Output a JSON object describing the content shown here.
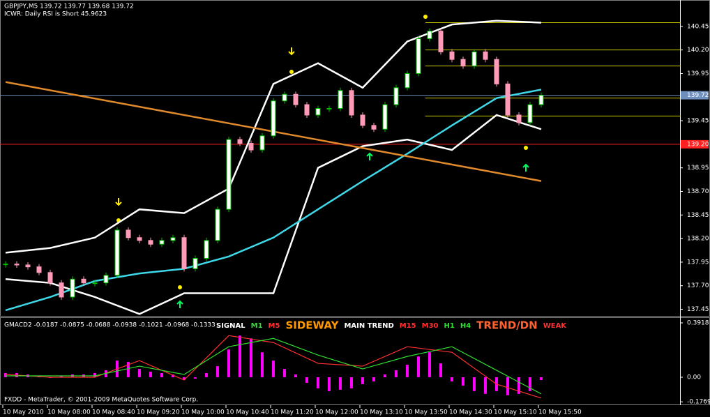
{
  "chart_data": [
    {
      "type": "candlestick",
      "title": "GBPJPY,M5  139.72 139.77 139.68 139.72",
      "subtitle": "ICWR: Daily RSI is Short 45.9623",
      "ylim": [
        137.38,
        140.73
      ],
      "yticks": [
        140.45,
        {
          "value": 140.2,
          "label": "140.20"
        },
        139.95,
        {
          "value": 139.7,
          "label": "139.70"
        },
        139.45,
        {
          "value": 139.2,
          "label": "139.20"
        },
        138.95,
        {
          "value": 138.7,
          "label": "138.70"
        },
        138.45,
        {
          "value": 138.2,
          "label": "138.20"
        },
        137.95,
        {
          "value": 137.7,
          "label": "137.70"
        },
        137.45
      ],
      "closes": [
        137.93,
        137.92,
        137.9,
        137.84,
        137.73,
        137.58,
        137.77,
        137.73,
        137.73,
        137.81,
        138.29,
        138.21,
        138.18,
        138.14,
        138.18,
        138.21,
        137.88,
        137.99,
        138.18,
        138.51,
        139.25,
        139.21,
        139.14,
        139.29,
        139.66,
        139.73,
        139.62,
        139.51,
        139.58,
        139.58,
        139.77,
        139.51,
        139.4,
        139.36,
        139.62,
        139.8,
        139.95,
        140.32,
        140.4,
        140.18,
        140.1,
        140.03,
        140.18,
        140.1,
        139.84,
        139.51,
        139.43,
        139.62,
        139.72
      ],
      "up_color": "#00c000",
      "down_color": "#ff9ab8",
      "series": [
        {
          "color": "#ffffff",
          "values": [
            138.05,
            138.1,
            138.21,
            138.51,
            138.47,
            138.73,
            139.84,
            140.06,
            139.8,
            140.29,
            140.47,
            140.51,
            140.49
          ]
        },
        {
          "color": "#ffffff",
          "values": [
            137.77,
            137.73,
            137.58,
            137.4,
            137.62,
            137.62,
            137.62,
            138.95,
            139.18,
            139.25,
            139.14,
            139.51,
            139.36
          ]
        },
        {
          "color": "#3fd8e8",
          "values": [
            137.44,
            137.58,
            137.75,
            137.83,
            137.88,
            138.01,
            138.21,
            138.51,
            138.81,
            139.1,
            139.4,
            139.69,
            139.78
          ]
        },
        {
          "color": "#e08a2c",
          "values": [
            139.86,
            138.81
          ]
        }
      ],
      "levels": [
        140.49,
        140.2,
        140.03,
        139.69,
        139.5
      ],
      "level_color": "#c8c800",
      "badges": [
        {
          "value": 139.72,
          "color": "#6f8fbf"
        },
        {
          "value": 139.2,
          "label": "139.20",
          "color": "#ff2020"
        }
      ]
    },
    {
      "type": "bar",
      "title": "GMACD2 -0.0187 -0.0875 -0.0688 -0.0938 -0.1021 -0.0968 -0.1333",
      "ylim": [
        -0.196,
        0.427
      ],
      "yticks": [
        0.3918,
        {
          "value": 0,
          "label": "0.00"
        },
        -0.1769
      ],
      "values": [
        0.03,
        0.03,
        0.02,
        0.01,
        0,
        0.01,
        0.02,
        0.02,
        0.03,
        0.05,
        0.12,
        0.11,
        0.06,
        0.04,
        0.03,
        0.02,
        -0.02,
        -0.01,
        0.03,
        0.08,
        0.2,
        0.3,
        0.28,
        0.18,
        0.12,
        0.06,
        0.02,
        -0.04,
        -0.08,
        -0.1,
        -0.09,
        -0.08,
        -0.05,
        -0.03,
        0.02,
        0.05,
        0.09,
        0.15,
        0.18,
        0.1,
        -0.03,
        -0.06,
        -0.1,
        -0.12,
        -0.1,
        -0.13,
        -0.12,
        -0.1,
        -0.02
      ],
      "color": "#ff00ff",
      "series": [
        {
          "color": "#ff3030",
          "values": [
            0.02,
            0,
            0,
            0.12,
            -0.02,
            0.3,
            0.25,
            0.1,
            0.08,
            0.22,
            0.18,
            -0.05,
            -0.15
          ]
        },
        {
          "color": "#30e030",
          "values": [
            0.01,
            0.01,
            0.01,
            0.08,
            0.02,
            0.22,
            0.28,
            0.16,
            0.06,
            0.15,
            0.22,
            0.05,
            -0.12
          ]
        }
      ],
      "signals": [
        {
          "text": "SIGNAL",
          "color": "#ffffff"
        },
        {
          "text": "M1",
          "color": "#30e030"
        },
        {
          "text": "M5",
          "color": "#ff3030"
        },
        {
          "text": "SIDEWAY",
          "color": "#ff9900"
        },
        {
          "text": "MAIN TREND",
          "color": "#ffffff"
        },
        {
          "text": "M15",
          "color": "#ff3030"
        },
        {
          "text": "M30",
          "color": "#ff3030"
        },
        {
          "text": "H1",
          "color": "#30e030"
        },
        {
          "text": "H4",
          "color": "#30e030"
        },
        {
          "text": "TREND/DN",
          "color": "#ff6030"
        },
        {
          "text": "WEAK",
          "color": "#ff3030"
        }
      ]
    }
  ],
  "time_labels": [
    "10 May 2010",
    "10 May 08:00",
    "10 May 08:40",
    "10 May 09:20",
    "10 May 10:00",
    "10 May 10:40",
    "10 May 11:20",
    "10 May 12:00",
    "10 May 13:10",
    "10 May 13:50",
    "10 May 14:30",
    "10 May 15:10",
    "10 May 15:50"
  ],
  "footer": "FXDD - MetaTrader, © 2001-2009 MetaQuotes Software Corp."
}
